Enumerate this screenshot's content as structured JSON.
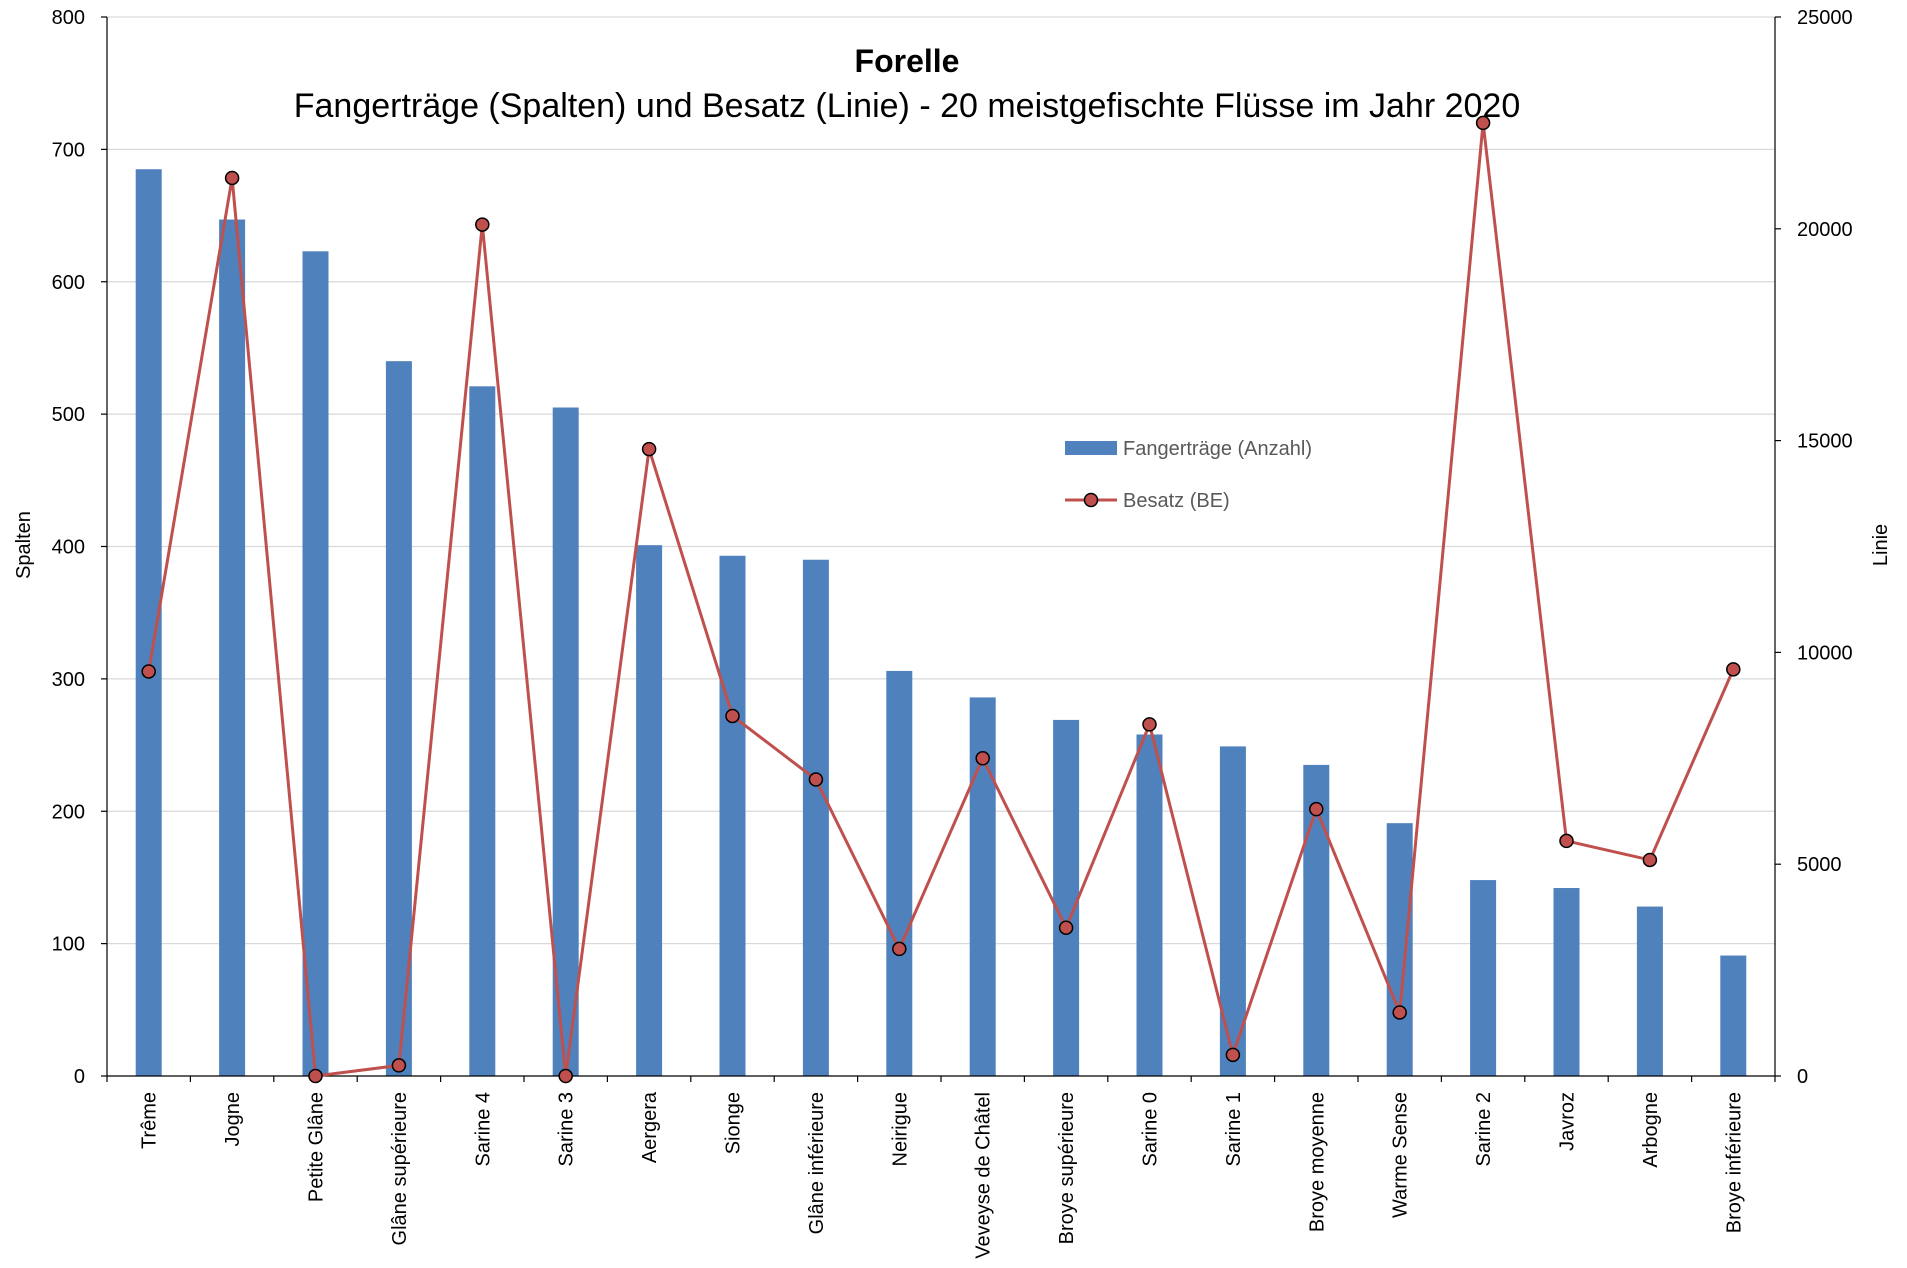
{
  "chart_data": {
    "type": "bar+line",
    "title": "Forelle",
    "subtitle": "Fangerträge (Spalten) und Besatz (Linie) - 20 meistgefischte Flüsse im Jahr 2020",
    "ylabel_left": "Spalten",
    "ylabel_right": "Linie",
    "ylim_left": [
      0,
      800
    ],
    "yticks_left": [
      0,
      100,
      200,
      300,
      400,
      500,
      600,
      700,
      800
    ],
    "ylim_right": [
      0,
      25000
    ],
    "yticks_right": [
      0,
      5000,
      10000,
      15000,
      20000,
      25000
    ],
    "grid": true,
    "legend_position": "center-right",
    "categories": [
      "Trême",
      "Jogne",
      "Petite Glâne",
      "Glâne supérieure",
      "Sarine 4",
      "Sarine 3",
      "Aergera",
      "Sionge",
      "Glâne inférieure",
      "Neirigue",
      "Veveyse de Châtel",
      "Broye supérieure",
      "Sarine 0",
      "Sarine 1",
      "Broye moyenne",
      "Warme Sense",
      "Sarine 2",
      "Javroz",
      "Arbogne",
      "Broye inférieure"
    ],
    "series": [
      {
        "name": "Fangerträge (Anzahl)",
        "type": "bar",
        "axis": "left",
        "color": "#4F81BD",
        "values": [
          685,
          647,
          623,
          540,
          521,
          505,
          401,
          393,
          390,
          306,
          286,
          269,
          258,
          249,
          235,
          191,
          148,
          142,
          128,
          91
        ]
      },
      {
        "name": "Besatz (BE)",
        "type": "line",
        "axis": "right",
        "color": "#C0504D",
        "values": [
          9550,
          21200,
          0,
          250,
          20100,
          0,
          14800,
          8500,
          7000,
          3000,
          7500,
          3500,
          8300,
          500,
          6300,
          1500,
          22500,
          5550,
          5100,
          9600
        ]
      }
    ]
  }
}
